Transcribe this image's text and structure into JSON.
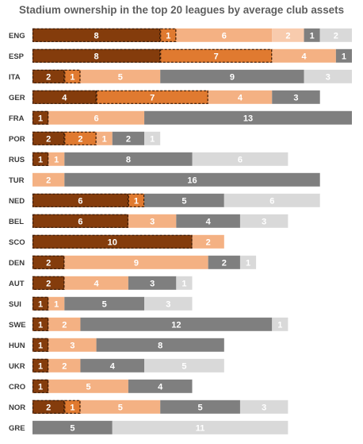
{
  "chart_data": {
    "type": "bar",
    "orientation": "horizontal",
    "stacked": true,
    "title": "Stadium ownership in the top 20 leagues by average club assets",
    "categories": [
      "ENG",
      "ESP",
      "ITA",
      "GER",
      "FRA",
      "POR",
      "RUS",
      "TUR",
      "NED",
      "BEL",
      "SCO",
      "DEN",
      "AUT",
      "SUI",
      "SWE",
      "HUN",
      "UKR",
      "CRO",
      "NOR",
      "GRE"
    ],
    "series": [
      {
        "color": "#843c0c",
        "values": [
          8,
          8,
          2,
          4,
          1,
          2,
          1,
          0,
          6,
          6,
          10,
          2,
          2,
          1,
          1,
          1,
          1,
          1,
          2,
          0
        ]
      },
      {
        "color": "#e07a30",
        "values": [
          1,
          7,
          1,
          7,
          0,
          2,
          0,
          0,
          1,
          0,
          0,
          0,
          0,
          0,
          0,
          0,
          0,
          0,
          1,
          0
        ]
      },
      {
        "color": "#f4b183",
        "values": [
          6,
          4,
          5,
          4,
          6,
          1,
          1,
          2,
          0,
          3,
          2,
          9,
          4,
          1,
          2,
          3,
          2,
          5,
          5,
          0
        ]
      },
      {
        "color": "#7f7f7f",
        "values": [
          1,
          1,
          9,
          3,
          13,
          2,
          8,
          16,
          5,
          4,
          0,
          2,
          3,
          5,
          12,
          8,
          4,
          4,
          5,
          5
        ]
      },
      {
        "color": "#d9d9d9",
        "values": [
          2,
          0,
          3,
          0,
          0,
          1,
          6,
          0,
          6,
          3,
          0,
          1,
          1,
          3,
          1,
          0,
          5,
          0,
          3,
          11
        ]
      }
    ],
    "segment_order": [
      [
        0,
        1,
        2,
        4,
        3,
        4
      ],
      [
        0,
        2,
        2,
        0,
        0,
        0
      ]
    ],
    "dashed_outline_first_series": true,
    "dashed_outline_second_series": true
  }
}
